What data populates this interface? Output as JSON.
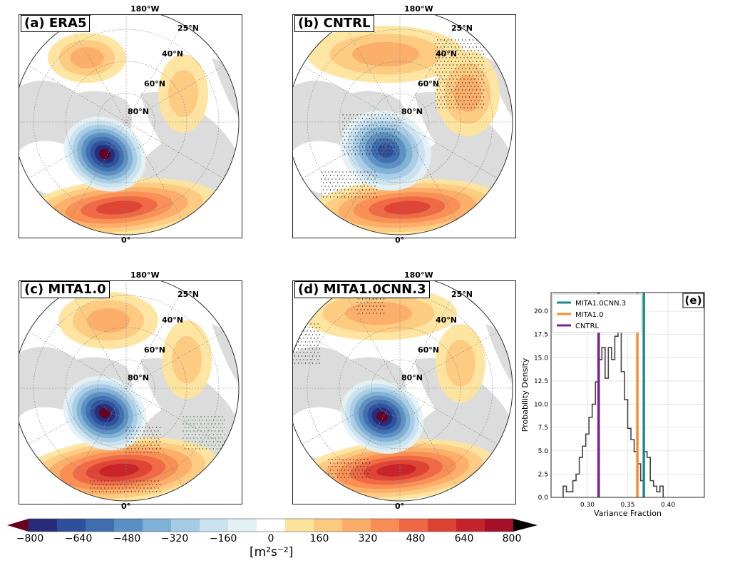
{
  "panels": [
    {
      "id": "a",
      "title": "(a) ERA5"
    },
    {
      "id": "b",
      "title": "(b) CNTRL"
    },
    {
      "id": "c",
      "title": "(c) MITA1.0"
    },
    {
      "id": "d",
      "title": "(d) MITA1.0CNN.3"
    }
  ],
  "map_labels": {
    "lon_top": "180°W",
    "lon_bottom": "0°",
    "lat_25": "25°N",
    "lat_40": "40°N",
    "lat_60": "60°N",
    "lat_80": "80°N"
  },
  "colorbar": {
    "ticks": [
      "−800",
      "−640",
      "−480",
      "−320",
      "−160",
      "0",
      "160",
      "320",
      "480",
      "640",
      "800"
    ],
    "unit": "[m²s⁻²]",
    "colors": [
      "#67001f",
      "#262b7a",
      "#2f4f9a",
      "#3f6eaf",
      "#5b8ec2",
      "#7fb0d6",
      "#a6cce4",
      "#c9e2ef",
      "#e3f1f5",
      "#ffffff",
      "#fee39a",
      "#fdc97f",
      "#fcac69",
      "#f98d55",
      "#ef6744",
      "#dc4233",
      "#c5222a",
      "#a50f28",
      "#000000"
    ]
  },
  "chart_data": {
    "type": "bar",
    "panel_label": "(e)",
    "xlabel": "Variance Fraction",
    "ylabel": "Probability Density",
    "xlim": [
      0.255,
      0.445
    ],
    "ylim": [
      0,
      22
    ],
    "xticks": [
      "0.30",
      "0.35",
      "0.40"
    ],
    "yticks": [
      "0.0",
      "2.5",
      "5.0",
      "7.5",
      "10.0",
      "12.5",
      "15.0",
      "17.5",
      "20.0"
    ],
    "histogram": {
      "bin_start": 0.27,
      "bin_width": 0.004,
      "densities": [
        1.2,
        0.6,
        0.6,
        1.8,
        2.5,
        4.3,
        5.5,
        6.8,
        8.6,
        10.0,
        12.4,
        14.8,
        16.1,
        12.8,
        16.1,
        14.8,
        17.3,
        18.5,
        13.5,
        10.5,
        7.4,
        6.2,
        4.9,
        3.6,
        1.8,
        4.9,
        4.3,
        1.8,
        1.2,
        0.6,
        1.2
      ]
    },
    "vertical_lines": [
      {
        "name": "MITA1.0CNN.3",
        "x": 0.37,
        "color": "#1a8c8c"
      },
      {
        "name": "MITA1.0",
        "x": 0.362,
        "color": "#f28e2b"
      },
      {
        "name": "CNTRL",
        "x": 0.314,
        "color": "#7b1f8f"
      }
    ],
    "legend": "top-left",
    "grid": true
  }
}
